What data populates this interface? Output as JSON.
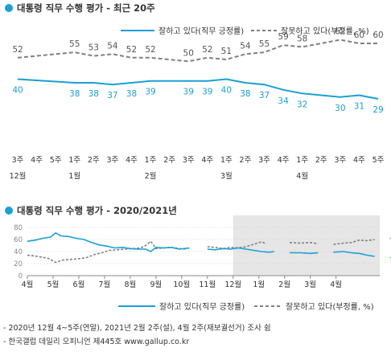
{
  "chart_data": [
    {
      "type": "line",
      "title": "대통령 직무 수행 평가 - 최근 20주",
      "legend": {
        "position": "top-right"
      },
      "categories": [
        [
          "3주",
          "12월"
        ],
        [
          "4주",
          ""
        ],
        [
          "5주",
          ""
        ],
        [
          "1주",
          "1월"
        ],
        [
          "2주",
          ""
        ],
        [
          "3주",
          ""
        ],
        [
          "4주",
          ""
        ],
        [
          "1주",
          "2월"
        ],
        [
          "2주",
          ""
        ],
        [
          "3주",
          ""
        ],
        [
          "4주",
          ""
        ],
        [
          "1주",
          "3월"
        ],
        [
          "2주",
          ""
        ],
        [
          "3주",
          ""
        ],
        [
          "4주",
          ""
        ],
        [
          "1주",
          "4월"
        ],
        [
          "2주",
          ""
        ],
        [
          "3주",
          ""
        ],
        [
          "4주",
          ""
        ],
        [
          "5주",
          ""
        ]
      ],
      "series": [
        {
          "name": "잘하고 있다(직무 긍정률)",
          "color": "#1a9fd6",
          "style": "solid",
          "values": [
            40,
            null,
            null,
            38,
            38,
            37,
            38,
            39,
            null,
            39,
            39,
            40,
            38,
            37,
            34,
            32,
            null,
            30,
            31,
            29
          ]
        },
        {
          "name": "잘못하고 있다(부정률, %)",
          "color": "#808080",
          "style": "dashed",
          "values": [
            52,
            null,
            null,
            55,
            53,
            54,
            52,
            52,
            null,
            50,
            52,
            51,
            54,
            55,
            59,
            58,
            null,
            62,
            60,
            60
          ]
        }
      ]
    },
    {
      "type": "line",
      "title": "대통령 직무 수행 평가 - 2020/2021년",
      "legend": {
        "position": "bottom"
      },
      "ylim": [
        0,
        80
      ],
      "yticks": [
        "0",
        "20",
        "40",
        "60",
        "80"
      ],
      "month_labels": [
        "4월",
        "5월",
        "6월",
        "7월",
        "8월",
        "9월",
        "10월",
        "11월",
        "12월",
        "1월",
        "2월",
        "3월",
        "4월"
      ],
      "shaded_from_month_index": 8,
      "series": [
        {
          "name": "잘하고 있다(직무 긍정률)",
          "color": "#1a9fd6",
          "style": "solid",
          "segments": [
            [
              [
                0.0,
                57
              ],
              [
                0.3,
                59
              ],
              [
                0.6,
                62
              ],
              [
                0.9,
                64
              ],
              [
                1.1,
                71
              ],
              [
                1.3,
                66
              ],
              [
                1.6,
                65
              ],
              [
                1.9,
                62
              ],
              [
                2.2,
                60
              ],
              [
                2.5,
                55
              ],
              [
                2.8,
                51
              ],
              [
                3.1,
                49
              ],
              [
                3.4,
                46
              ],
              [
                3.7,
                47
              ],
              [
                4.0,
                45
              ],
              [
                4.3,
                44
              ],
              [
                4.6,
                44
              ],
              [
                4.8,
                40
              ],
              [
                5.0,
                47
              ],
              [
                5.3,
                46
              ],
              [
                5.6,
                47
              ],
              [
                5.9,
                44
              ],
              [
                6.1,
                45
              ],
              [
                6.3,
                46
              ]
            ],
            [
              [
                7.0,
                44
              ],
              [
                7.3,
                43
              ],
              [
                7.6,
                45
              ],
              [
                7.9,
                44
              ],
              [
                8.2,
                46
              ],
              [
                8.5,
                44
              ],
              [
                8.8,
                42
              ],
              [
                9.1,
                40
              ],
              [
                9.4,
                39
              ],
              [
                9.6,
                40
              ]
            ],
            [
              [
                10.2,
                38
              ],
              [
                10.6,
                38
              ],
              [
                11.0,
                37
              ],
              [
                11.3,
                38
              ]
            ],
            [
              [
                11.9,
                39
              ],
              [
                12.3,
                40
              ],
              [
                12.6,
                38
              ],
              [
                12.9,
                37
              ],
              [
                13.2,
                34
              ],
              [
                13.5,
                32
              ]
            ],
            [
              [
                14.1,
                30
              ],
              [
                14.4,
                31
              ],
              [
                14.7,
                29
              ]
            ]
          ]
        },
        {
          "name": "잘못하고 있다(부정률, %)",
          "color": "#808080",
          "style": "dashed",
          "segments": [
            [
              [
                0.0,
                34
              ],
              [
                0.4,
                32
              ],
              [
                0.8,
                29
              ],
              [
                1.1,
                22
              ],
              [
                1.4,
                26
              ],
              [
                1.7,
                27
              ],
              [
                2.0,
                28
              ],
              [
                2.3,
                30
              ],
              [
                2.6,
                35
              ],
              [
                2.9,
                38
              ],
              [
                3.2,
                42
              ],
              [
                3.5,
                43
              ],
              [
                3.8,
                44
              ],
              [
                4.1,
                45
              ],
              [
                4.4,
                46
              ],
              [
                4.6,
                50
              ],
              [
                4.8,
                57
              ],
              [
                5.0,
                45
              ],
              [
                5.3,
                46
              ],
              [
                5.6,
                47
              ],
              [
                5.9,
                45
              ],
              [
                6.1,
                44
              ],
              [
                6.3,
                46
              ]
            ],
            [
              [
                7.0,
                48
              ],
              [
                7.3,
                47
              ],
              [
                7.6,
                45
              ],
              [
                7.9,
                47
              ],
              [
                8.2,
                46
              ],
              [
                8.5,
                48
              ],
              [
                8.8,
                52
              ],
              [
                9.1,
                56
              ],
              [
                9.3,
                53
              ]
            ],
            [
              [
                10.2,
                55
              ],
              [
                10.6,
                54
              ],
              [
                11.0,
                55
              ],
              [
                11.3,
                53
              ]
            ],
            [
              [
                11.9,
                52
              ],
              [
                12.3,
                54
              ],
              [
                12.6,
                55
              ],
              [
                12.9,
                59
              ],
              [
                13.2,
                58
              ],
              [
                13.5,
                60
              ]
            ],
            [
              [
                14.1,
                62
              ],
              [
                14.4,
                60
              ],
              [
                14.7,
                60
              ]
            ]
          ]
        }
      ]
    }
  ],
  "footnotes": [
    "- 2020년 12월 4~5주(연말), 2021년 2월 2주(설), 4월 2주(재보궐선거) 조사 쉼",
    "- 한국갤럽 데일리 오피니언 제445호 www.gallup.co.kr"
  ]
}
